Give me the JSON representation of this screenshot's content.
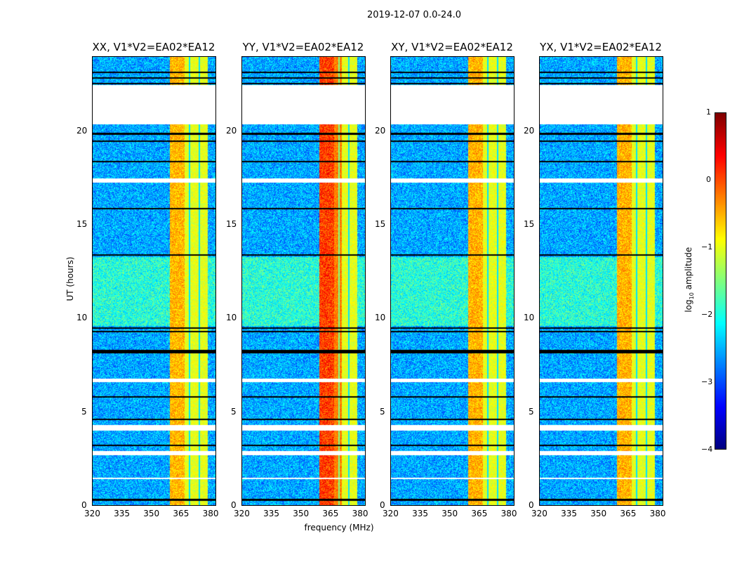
{
  "chart_data": {
    "type": "heatmap",
    "title": "2019-12-07 0.0-24.0",
    "xlabel": "frequency (MHz)",
    "ylabel": "UT (hours)",
    "xlim": [
      320,
      383
    ],
    "ylim": [
      0,
      24
    ],
    "xticks": [
      "320",
      "335",
      "350",
      "365",
      "380"
    ],
    "yticks": [
      "0",
      "5",
      "10",
      "15",
      "20"
    ],
    "panels": [
      {
        "title": "XX, V1*V2=EA02*EA12",
        "band_strength": 0.75
      },
      {
        "title": "YY, V1*V2=EA02*EA12",
        "band_strength": 0.95
      },
      {
        "title": "XY, V1*V2=EA02*EA12",
        "band_strength": 0.8
      },
      {
        "title": "YX, V1*V2=EA02*EA12",
        "band_strength": 0.8
      }
    ],
    "flagged_hours": [
      [
        20.4,
        22.5
      ],
      [
        17.3,
        17.5
      ],
      [
        6.6,
        6.8
      ],
      [
        4.0,
        4.3
      ],
      [
        2.7,
        2.9
      ],
      [
        1.4,
        1.5
      ]
    ],
    "colorbar": {
      "label": "log10 amplitude",
      "range": [
        -4,
        1
      ],
      "ticks": [
        "1",
        "0",
        "−1",
        "−2",
        "−3",
        "−4"
      ],
      "colormap": "jet"
    }
  }
}
